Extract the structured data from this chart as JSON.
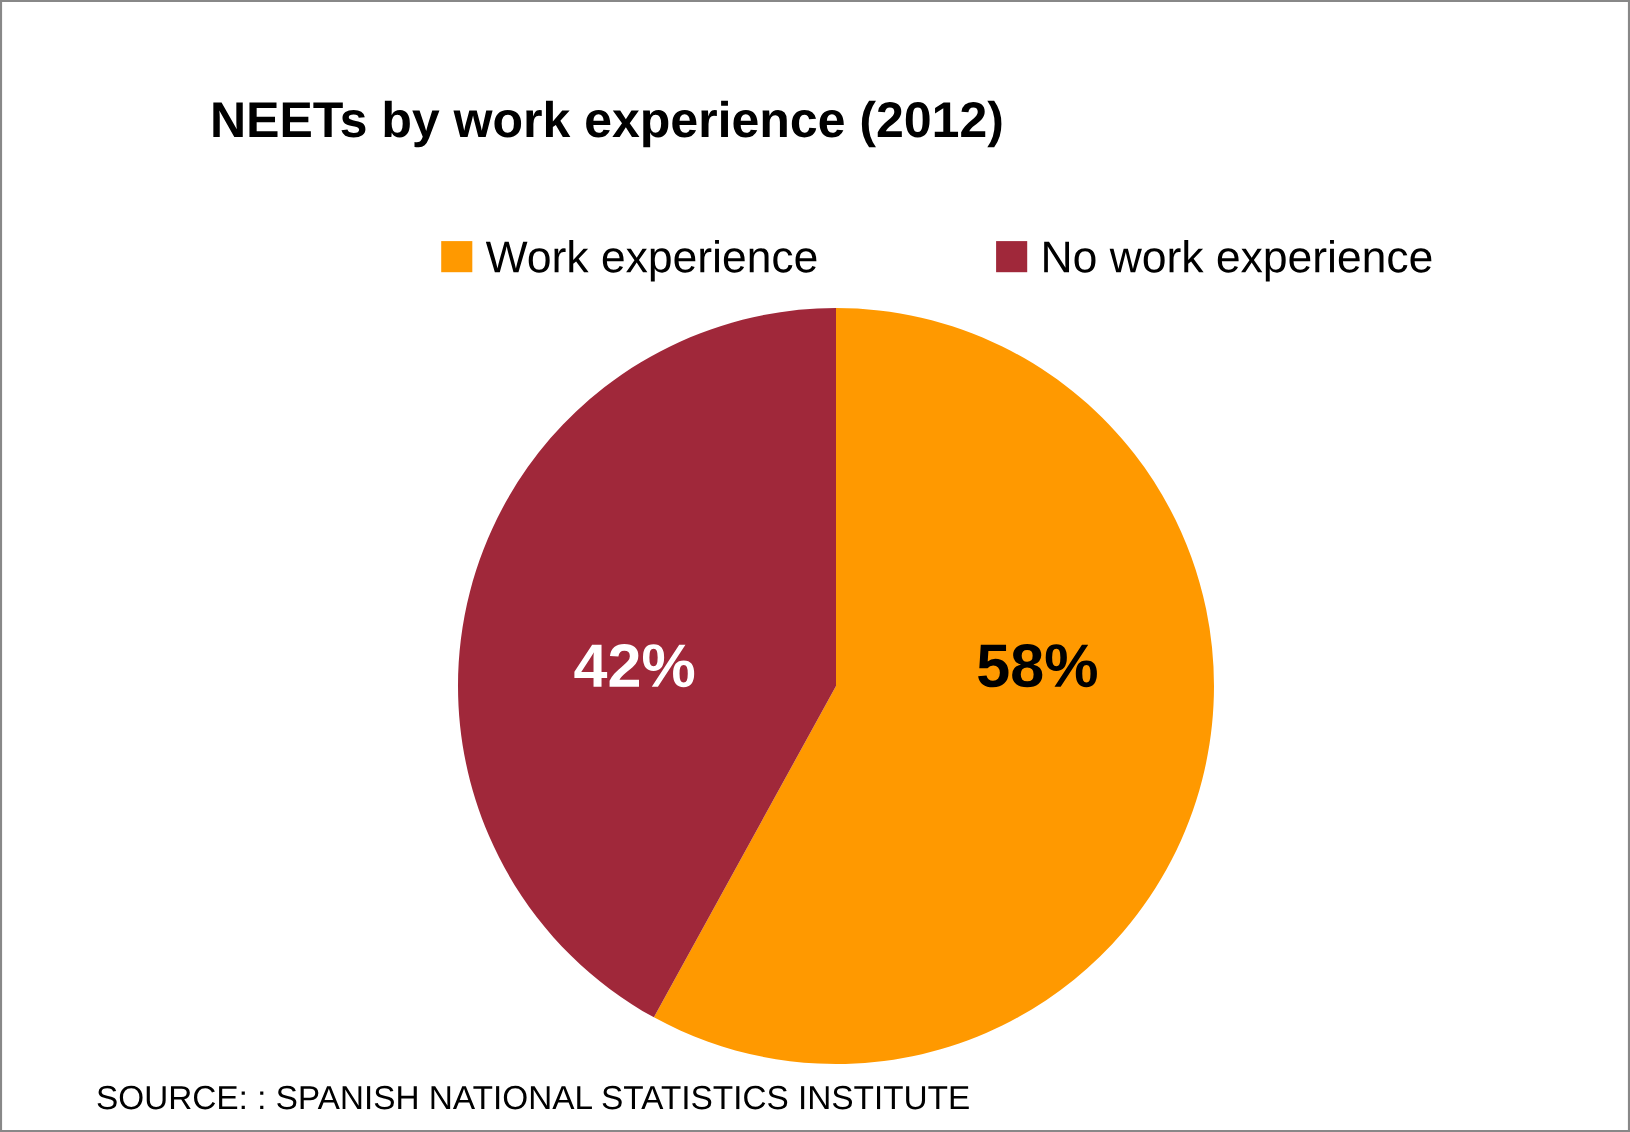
{
  "chart_data": {
    "type": "pie",
    "title": "NEETs by work experience (2012)",
    "categories": [
      "Work experience",
      "No work experience"
    ],
    "values": [
      58,
      42
    ],
    "colors": [
      "#ff9900",
      "#a0283a"
    ],
    "value_labels": [
      "58%",
      "42%"
    ],
    "legend": "top",
    "annotations": [
      "SOURCE: : SPANISH NATIONAL STATISTICS INSTITUTE"
    ]
  }
}
